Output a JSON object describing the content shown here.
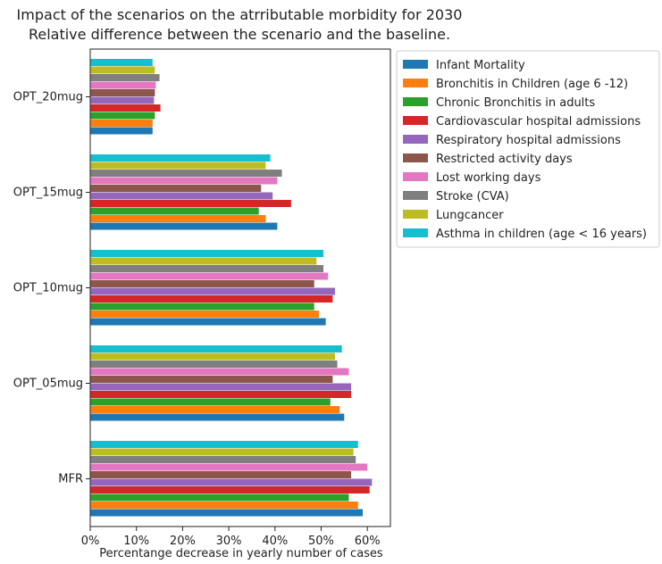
{
  "chart_data": {
    "type": "bar",
    "orientation": "horizontal",
    "title": "Impact of the scenarios on the atrributable morbidity for 2030",
    "subtitle": "Relative difference between the scenario and the baseline.",
    "xlabel": "Percentange decrease in yearly number of cases",
    "ylabel": "",
    "xlim": [
      0,
      0.65
    ],
    "x_ticks": [
      0,
      0.1,
      0.2,
      0.3,
      0.4,
      0.5,
      0.6
    ],
    "x_tick_labels": [
      "0%",
      "10%",
      "20%",
      "30%",
      "40%",
      "50%",
      "60%"
    ],
    "categories": [
      "MFR",
      "OPT_05mug",
      "OPT_10mug",
      "OPT_15mug",
      "OPT_20mug"
    ],
    "legend_position": "right-outside-top",
    "grid": false,
    "series": [
      {
        "name": "Infant Mortality",
        "color": "#1f77b4",
        "values": [
          0.59,
          0.55,
          0.51,
          0.405,
          0.135
        ]
      },
      {
        "name": "Bronchitis in Children (age 6 -12)",
        "color": "#ff7f0e",
        "values": [
          0.58,
          0.54,
          0.495,
          0.38,
          0.135
        ]
      },
      {
        "name": "Chronic Bronchitis in adults",
        "color": "#2ca02c",
        "values": [
          0.56,
          0.52,
          0.485,
          0.365,
          0.14
        ]
      },
      {
        "name": "Cardiovascular hospital admissions",
        "color": "#d62728",
        "values": [
          0.605,
          0.565,
          0.525,
          0.435,
          0.152
        ]
      },
      {
        "name": "Respiratory hospital admissions",
        "color": "#9467bd",
        "values": [
          0.61,
          0.565,
          0.53,
          0.395,
          0.138
        ]
      },
      {
        "name": "Restricted activity days",
        "color": "#8c564b",
        "values": [
          0.565,
          0.525,
          0.485,
          0.37,
          0.14
        ]
      },
      {
        "name": "Lost working days",
        "color": "#e377c2",
        "values": [
          0.6,
          0.56,
          0.515,
          0.405,
          0.142
        ]
      },
      {
        "name": "Stroke (CVA)",
        "color": "#7f7f7f",
        "values": [
          0.575,
          0.535,
          0.505,
          0.415,
          0.15
        ]
      },
      {
        "name": "Lungcancer",
        "color": "#bcbd22",
        "values": [
          0.57,
          0.53,
          0.49,
          0.38,
          0.14
        ]
      },
      {
        "name": "Asthma in children (age < 16 years)",
        "color": "#17becf",
        "values": [
          0.58,
          0.545,
          0.505,
          0.39,
          0.135
        ]
      }
    ]
  }
}
